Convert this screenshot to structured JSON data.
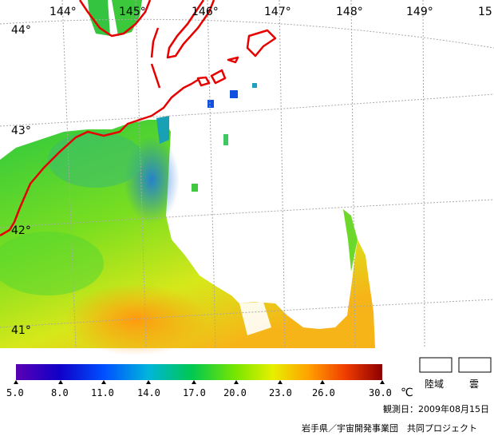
{
  "map": {
    "lon_labels": [
      "144°",
      "145°",
      "146°",
      "147°",
      "148°",
      "149°",
      "15"
    ],
    "lat_labels": [
      "44°",
      "43°",
      "42°",
      "41°"
    ]
  },
  "colorbar": {
    "tick_labels": [
      "5.0",
      "8.0",
      "11.0",
      "14.0",
      "17.0",
      "20.0",
      "23.0",
      "26.0",
      "30.0"
    ],
    "unit": "℃",
    "colors": [
      "#5a00b4",
      "#0000c8",
      "#0064ff",
      "#00c8c8",
      "#00c800",
      "#96e600",
      "#ffff00",
      "#ff9600",
      "#e60000",
      "#8c0000"
    ]
  },
  "legend": {
    "land": "陸域",
    "cloud": "雲"
  },
  "footer": {
    "date": "観測日：2009年08月15日",
    "credit": "岩手県／宇宙開発事業団　共同プロジェクト"
  }
}
